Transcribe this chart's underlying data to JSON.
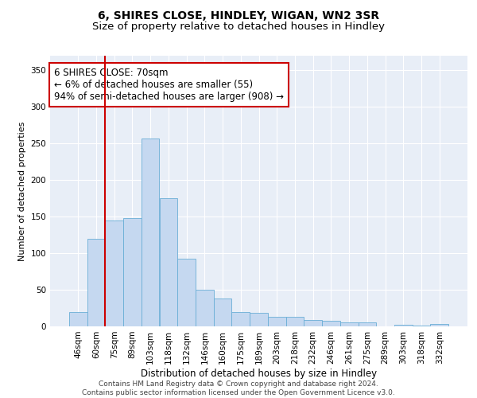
{
  "title": "6, SHIRES CLOSE, HINDLEY, WIGAN, WN2 3SR",
  "subtitle": "Size of property relative to detached houses in Hindley",
  "xlabel": "Distribution of detached houses by size in Hindley",
  "ylabel": "Number of detached properties",
  "categories": [
    "46sqm",
    "60sqm",
    "75sqm",
    "89sqm",
    "103sqm",
    "118sqm",
    "132sqm",
    "146sqm",
    "160sqm",
    "175sqm",
    "189sqm",
    "203sqm",
    "218sqm",
    "232sqm",
    "246sqm",
    "261sqm",
    "275sqm",
    "289sqm",
    "303sqm",
    "318sqm",
    "332sqm"
  ],
  "values": [
    20,
    120,
    145,
    148,
    257,
    175,
    93,
    50,
    38,
    20,
    18,
    13,
    13,
    9,
    8,
    5,
    5,
    0,
    2,
    1,
    3
  ],
  "bar_color": "#c5d8f0",
  "bar_edge_color": "#6aaed6",
  "vline_x": 2,
  "vline_color": "#cc0000",
  "annotation_text": "6 SHIRES CLOSE: 70sqm\n← 6% of detached houses are smaller (55)\n94% of semi-detached houses are larger (908) →",
  "annotation_box_color": "#ffffff",
  "annotation_box_edge": "#cc0000",
  "annotation_fontsize": 8.5,
  "ylim": [
    0,
    370
  ],
  "yticks": [
    0,
    50,
    100,
    150,
    200,
    250,
    300,
    350
  ],
  "background_color": "#e8eef7",
  "grid_color": "#ffffff",
  "footer": "Contains HM Land Registry data © Crown copyright and database right 2024.\nContains public sector information licensed under the Open Government Licence v3.0.",
  "title_fontsize": 10,
  "subtitle_fontsize": 9.5,
  "xlabel_fontsize": 8.5,
  "ylabel_fontsize": 8,
  "tick_fontsize": 7.5,
  "footer_fontsize": 6.5
}
